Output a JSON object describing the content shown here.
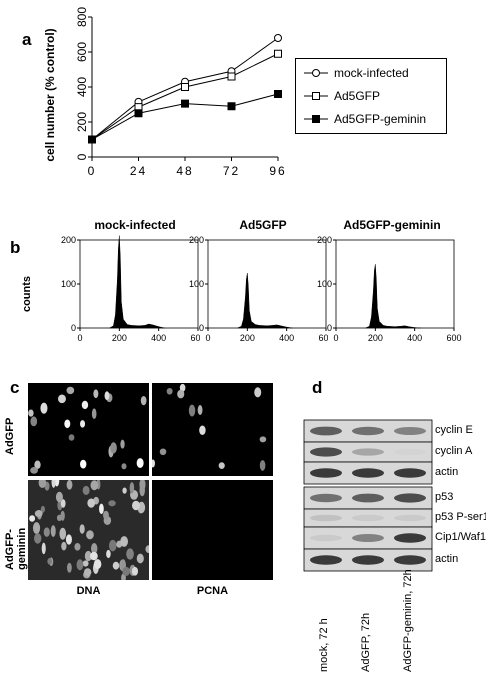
{
  "panels": {
    "a": "a",
    "b": "b",
    "c": "c",
    "d": "d"
  },
  "chart_data": [
    {
      "type": "line",
      "x": [
        0,
        24,
        48,
        72,
        96
      ],
      "ylabel": "cell number (% control)",
      "xlabel": "",
      "xticks": [
        "0",
        "24",
        "48",
        "72",
        "96"
      ],
      "yticks": [
        "0",
        "200",
        "400",
        "600",
        "800"
      ],
      "ylim": [
        0,
        800
      ],
      "series": [
        {
          "name": "mock-infected",
          "values": [
            100,
            315,
            430,
            490,
            680
          ],
          "marker": "open-circle"
        },
        {
          "name": "Ad5GFP",
          "values": [
            100,
            285,
            400,
            460,
            590
          ],
          "marker": "open-square"
        },
        {
          "name": "Ad5GFP-geminin",
          "values": [
            100,
            250,
            305,
            290,
            360
          ],
          "marker": "filled-square"
        }
      ],
      "legend_position": "right"
    },
    {
      "type": "area",
      "title": "mock-infected",
      "ylabel": "counts",
      "xticks": [
        "0",
        "200",
        "400",
        "600"
      ],
      "yticks": [
        "0",
        "100",
        "200"
      ],
      "xlim": [
        0,
        600
      ],
      "ylim": [
        0,
        200
      ],
      "x": [
        150,
        170,
        180,
        190,
        195,
        200,
        205,
        210,
        220,
        240,
        260,
        300,
        330,
        350,
        370,
        400,
        430
      ],
      "values": [
        0,
        5,
        30,
        110,
        180,
        210,
        160,
        60,
        20,
        8,
        6,
        5,
        6,
        9,
        7,
        3,
        0
      ]
    },
    {
      "type": "area",
      "title": "Ad5GFP",
      "xticks": [
        "0",
        "200",
        "400",
        "600"
      ],
      "yticks": [
        "0",
        "100",
        "200"
      ],
      "xlim": [
        0,
        600
      ],
      "ylim": [
        0,
        200
      ],
      "x": [
        150,
        170,
        180,
        190,
        195,
        200,
        205,
        210,
        220,
        240,
        260,
        300,
        330,
        350,
        370,
        400,
        430
      ],
      "values": [
        0,
        4,
        20,
        70,
        110,
        125,
        95,
        40,
        15,
        8,
        6,
        5,
        6,
        7,
        5,
        2,
        0
      ]
    },
    {
      "type": "area",
      "title": "Ad5GFP-geminin",
      "xticks": [
        "0",
        "200",
        "400",
        "600"
      ],
      "yticks": [
        "0",
        "100",
        "200"
      ],
      "xlim": [
        0,
        600
      ],
      "ylim": [
        0,
        200
      ],
      "x": [
        150,
        170,
        180,
        190,
        195,
        200,
        205,
        210,
        220,
        240,
        260,
        300,
        330,
        350,
        370,
        400,
        430
      ],
      "values": [
        0,
        4,
        25,
        85,
        130,
        145,
        110,
        45,
        15,
        6,
        4,
        3,
        4,
        5,
        3,
        1,
        0
      ]
    }
  ],
  "micrographs": {
    "row_labels": [
      "AdGFP",
      "AdGFP-geminin"
    ],
    "col_labels": [
      "DNA",
      "PCNA"
    ]
  },
  "western": {
    "bands": [
      "cyclin E",
      "cyclin A",
      "actin",
      "p53",
      "p53 P-ser15",
      "Cip1/Waf1",
      "actin"
    ],
    "lanes": [
      "mock, 72 h",
      "AdGFP, 72h",
      "AdGFP-geminin, 72h"
    ]
  }
}
